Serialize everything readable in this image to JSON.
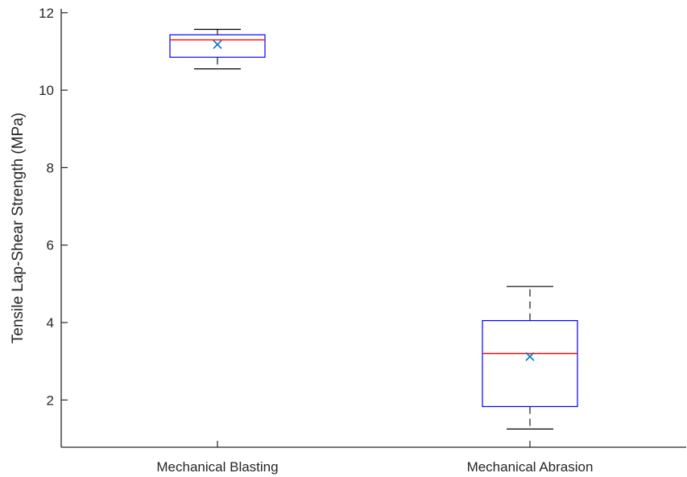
{
  "chart_data": {
    "type": "box",
    "title": "",
    "xlabel": "",
    "ylabel": "Tensile Lap-Shear Strength (MPa)",
    "ylim": [
      0.78,
      12.1
    ],
    "yticks": [
      2,
      4,
      6,
      8,
      10,
      12
    ],
    "categories": [
      "Mechanical Blasting",
      "Mechanical Abrasion"
    ],
    "boxes": [
      {
        "category": "Mechanical Blasting",
        "whisker_low": 10.55,
        "q1": 10.85,
        "median": 11.3,
        "q3": 11.43,
        "whisker_high": 11.57,
        "mean": 11.18
      },
      {
        "category": "Mechanical Abrasion",
        "whisker_low": 1.25,
        "q1": 1.83,
        "median": 3.2,
        "q3": 4.05,
        "whisker_high": 4.93,
        "mean": 3.12
      }
    ],
    "grid": false,
    "legend": "none",
    "colors": {
      "box": "#0000ff",
      "median": "#ff0000",
      "whisker": "#000000",
      "mean_marker": "#0072bd",
      "axis": "#262626"
    }
  }
}
